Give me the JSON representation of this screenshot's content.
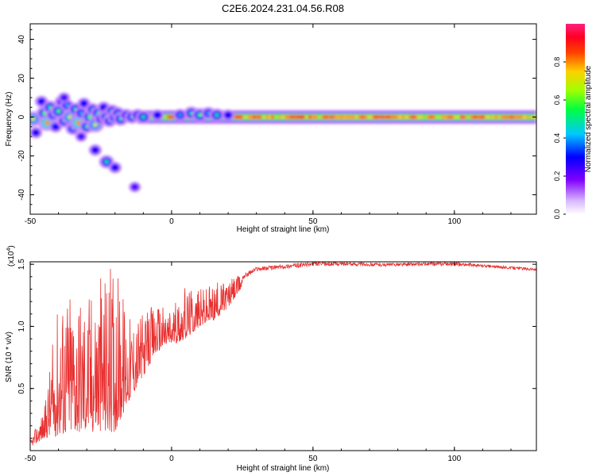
{
  "title": "C2E6.2024.231.04.56.R08",
  "colors": {
    "snr_line": "#e83030",
    "colormap": [
      "#f0f0ff",
      "#e0c0ff",
      "#9030e0",
      "#2000ff",
      "#00c8ff",
      "#00ff60",
      "#c8ff00",
      "#ff8000",
      "#ff0000",
      "#ff2080"
    ]
  },
  "chart_data": [
    {
      "type": "heatmap",
      "name": "spectrogram",
      "xlabel": "Height of straight line (km)",
      "ylabel": "Frequency (Hz)",
      "xlim": [
        -50,
        129
      ],
      "ylim": [
        -50,
        48
      ],
      "x_ticks": [
        -50,
        0,
        50,
        100
      ],
      "x_tick_labels": [
        "-50",
        "0",
        "50",
        "100"
      ],
      "y_ticks": [
        -40,
        -20,
        0,
        20,
        40
      ],
      "y_tick_labels": [
        "-40",
        "-20",
        "0",
        "20",
        "40"
      ],
      "colorbar": {
        "label": "Normalized spectral amplitude",
        "range": [
          0,
          1
        ],
        "ticks": [
          0.0,
          0.2,
          0.4,
          0.6,
          0.8
        ],
        "tick_labels": [
          "0.0",
          "0.2",
          "0.4",
          "0.6",
          "0.8"
        ]
      },
      "band": {
        "center_hz": 0,
        "core_halfwidth_hz": 1,
        "halo_halfwidth_hz": 3.5
      },
      "band_segments": [
        {
          "x0": -12,
          "x1": 4,
          "value": 0.9
        },
        {
          "x0": 4,
          "x1": 18,
          "value": 0.95
        },
        {
          "x0": 18,
          "x1": 50,
          "value": 0.85
        },
        {
          "x0": 50,
          "x1": 129,
          "value": 0.8
        }
      ],
      "blobs": [
        [
          -49,
          -1,
          0.7
        ],
        [
          -46,
          8,
          0.3
        ],
        [
          -45,
          2,
          0.6
        ],
        [
          -44,
          -3,
          0.8
        ],
        [
          -43,
          5,
          0.5
        ],
        [
          -42,
          1,
          0.4
        ],
        [
          -41,
          -5,
          0.3
        ],
        [
          -40,
          3,
          0.6
        ],
        [
          -39,
          8,
          0.3
        ],
        [
          -38,
          -2,
          0.5
        ],
        [
          -37,
          6,
          0.4
        ],
        [
          -36,
          0,
          0.7
        ],
        [
          -35,
          -6,
          0.4
        ],
        [
          -34,
          4,
          0.5
        ],
        [
          -33,
          -3,
          0.8
        ],
        [
          -32,
          2,
          0.4
        ],
        [
          -31,
          7,
          0.3
        ],
        [
          -30,
          -5,
          0.5
        ],
        [
          -29,
          0,
          0.6
        ],
        [
          -28,
          4,
          0.4
        ],
        [
          -27,
          -4,
          0.7
        ],
        [
          -26,
          2,
          0.5
        ],
        [
          -25,
          -1,
          0.4
        ],
        [
          -24,
          5,
          0.3
        ],
        [
          -23,
          0,
          0.6
        ],
        [
          -22,
          -2,
          0.4
        ],
        [
          -21,
          3,
          0.5
        ],
        [
          -20,
          0,
          0.6
        ],
        [
          -19,
          2,
          0.4
        ],
        [
          -18,
          -1,
          0.5
        ],
        [
          -16,
          1,
          0.4
        ],
        [
          -14,
          0,
          0.5
        ],
        [
          -12,
          1,
          0.4
        ],
        [
          -10,
          0,
          0.5
        ],
        [
          -5,
          1,
          0.3
        ],
        [
          3,
          1,
          0.4
        ],
        [
          7,
          2,
          0.5
        ],
        [
          10,
          1,
          0.6
        ],
        [
          13,
          2,
          0.4
        ],
        [
          16,
          1,
          0.5
        ],
        [
          20,
          1,
          0.3
        ],
        [
          -27,
          -17,
          0.3
        ],
        [
          -23,
          -23,
          0.5
        ],
        [
          -20,
          -26,
          0.3
        ],
        [
          -13,
          -36,
          0.2
        ],
        [
          -48,
          -8,
          0.3
        ],
        [
          -38,
          10,
          0.2
        ],
        [
          -32,
          -10,
          0.2
        ]
      ]
    },
    {
      "type": "line",
      "name": "snr",
      "xlabel": "Height of straight line (km)",
      "ylabel": "SNR (10 * v/v)",
      "multiplier_label": "(x10",
      "multiplier_exponent": "4",
      "multiplier_close": ")",
      "xlim": [
        -50,
        129
      ],
      "ylim": [
        0,
        1.52
      ],
      "x_ticks": [
        -50,
        0,
        50,
        100
      ],
      "x_tick_labels": [
        "-50",
        "0",
        "50",
        "100"
      ],
      "y_ticks": [
        0.5,
        1.0,
        1.5
      ],
      "y_tick_labels": [
        "0.5",
        "1.0",
        "1.5"
      ],
      "envelope": [
        [
          -50,
          0.03,
          0.08
        ],
        [
          -45,
          0.1,
          0.35
        ],
        [
          -40,
          0.12,
          1.25
        ],
        [
          -35,
          0.15,
          1.38
        ],
        [
          -30,
          0.15,
          1.3
        ],
        [
          -25,
          0.15,
          1.45
        ],
        [
          -20,
          0.15,
          1.5
        ],
        [
          -15,
          0.4,
          1.1
        ],
        [
          -10,
          0.6,
          1.1
        ],
        [
          -5,
          0.8,
          1.2
        ],
        [
          0,
          0.85,
          1.15
        ],
        [
          5,
          0.9,
          1.32
        ],
        [
          10,
          1.0,
          1.3
        ],
        [
          15,
          1.05,
          1.35
        ],
        [
          20,
          1.15,
          1.38
        ],
        [
          25,
          1.32,
          1.42
        ],
        [
          30,
          1.4,
          1.48
        ],
        [
          40,
          1.42,
          1.5
        ],
        [
          50,
          1.44,
          1.52
        ],
        [
          60,
          1.45,
          1.52
        ],
        [
          75,
          1.45,
          1.51
        ],
        [
          100,
          1.45,
          1.52
        ],
        [
          115,
          1.44,
          1.49
        ],
        [
          129,
          1.42,
          1.47
        ]
      ]
    }
  ]
}
